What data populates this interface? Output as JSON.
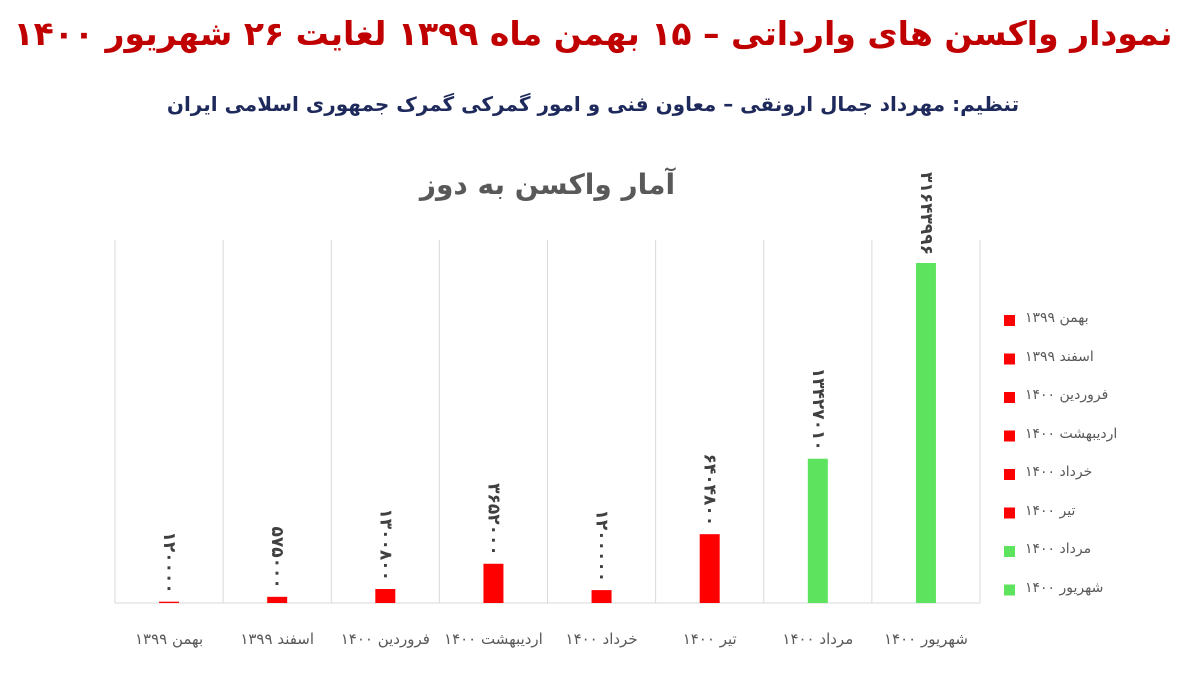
{
  "chart_data": {
    "type": "bar",
    "title": "نمودار واکسن های وارداتی – ۱۵ بهمن ماه ۱۳۹۹ لغایت ۲۶ شهریور ۱۴۰۰",
    "subtitle": "تنظیم: مهرداد جمال ارونقی – معاون فنی و امور گمرکی گمرک جمهوری اسلامی ایران",
    "chart_title": "آمار واکسن به دوز",
    "categories": [
      "بهمن ۱۳۹۹",
      "اسفند ۱۳۹۹",
      "فروردین ۱۴۰۰",
      "اردیبهشت ۱۴۰۰",
      "خرداد ۱۴۰۰",
      "تیر ۱۴۰۰",
      "مرداد ۱۴۰۰",
      "شهریور ۱۴۰۰"
    ],
    "values": [
      120000,
      575000,
      1300800,
      3652000,
      1200000,
      6404800,
      13427010,
      31643996
    ],
    "value_labels": [
      "۱۲۰۰۰۰",
      "۵۷۵۰۰۰",
      "۱۳۰۰۸۰۰",
      "۳۶۵۲۰۰۰",
      "۱۲۰۰۰۰۰",
      "۶۴۰۴۸۰۰",
      "۱۳۴۲۷۰۱۰",
      "۳۱۶۴۳۹۹۶"
    ],
    "colors": [
      "#ff0000",
      "#ff0000",
      "#ff0000",
      "#ff0000",
      "#ff0000",
      "#ff0000",
      "#5ee35e",
      "#5ee35e"
    ],
    "legend": "right",
    "grid": true
  }
}
